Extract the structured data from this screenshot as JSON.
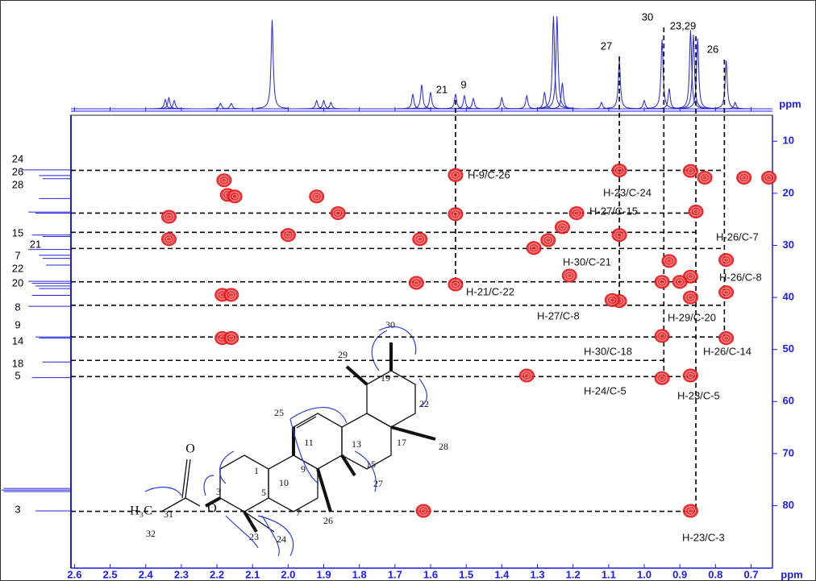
{
  "chart_data": {
    "type": "hmbc",
    "x_label": "ppm",
    "y_label": "ppm",
    "xlim": [
      2.61,
      0.64
    ],
    "ylim": [
      5,
      92
    ],
    "xticks": [
      2.6,
      2.5,
      2.4,
      2.3,
      2.2,
      2.1,
      {
        "value": 2,
        "label": "2.0"
      },
      1.9,
      1.8,
      1.7,
      1.6,
      1.5,
      1.4,
      1.3,
      1.2,
      1.1,
      {
        "value": 1,
        "label": "1.0"
      },
      0.9,
      0.8,
      0.7
    ],
    "yticks": [
      10,
      20,
      30,
      40,
      50,
      60,
      70,
      80
    ],
    "axis_color": "#1a1aff",
    "peak_color": "#e8191c",
    "proton_spectrum": {
      "x": [
        2.345,
        2.335,
        2.32,
        2.19,
        2.16,
        2.045,
        1.92,
        1.9,
        1.88,
        1.65,
        1.625,
        1.6,
        1.53,
        1.505,
        1.48,
        1.4,
        1.33,
        1.28,
        1.255,
        1.245,
        1.23,
        1.12,
        1.07,
        1.0,
        0.95,
        0.93,
        0.87,
        0.862,
        0.85,
        0.77,
        0.745
      ],
      "values": [
        10,
        12,
        9,
        6,
        6,
        96,
        9,
        9,
        7,
        16,
        26,
        18,
        16,
        14,
        11,
        12,
        14,
        18,
        100,
        100,
        28,
        7,
        52,
        9,
        75,
        22,
        85,
        80,
        76,
        52,
        7
      ]
    },
    "carbon_spectrum": {
      "values": [
        15.5,
        16.6,
        17.2,
        21.0,
        23.6,
        23.8,
        28.0,
        28.3,
        30.8,
        31.9,
        32.5,
        33.8,
        36.9,
        37.3,
        37.8,
        38.3,
        39.6,
        41.7,
        47.6,
        47.8,
        52.4,
        55.4,
        76.7,
        77.0,
        77.3,
        81.0
      ],
      "intensities": [
        70,
        45,
        40,
        45,
        60,
        50,
        55,
        40,
        60,
        45,
        40,
        35,
        60,
        55,
        50,
        45,
        55,
        60,
        50,
        45,
        40,
        55,
        95,
        98,
        95,
        50
      ]
    },
    "proton_labels": [
      "21",
      "9",
      "27",
      "30",
      "23,29",
      "26"
    ],
    "carbon_labels": [
      "24",
      "26",
      "28",
      "15",
      "21",
      "7",
      "22",
      "20",
      "8",
      "9",
      "14",
      "18",
      "5",
      "3"
    ],
    "vertical_lines": {
      "x": [
        1.53,
        1.07,
        0.945,
        0.855,
        0.775
      ],
      "ends": [
        37.5,
        41.5,
        55.2,
        81.1,
        47.6
      ]
    },
    "horizontal_lines": {
      "y": [
        15.6,
        23.8,
        27.5,
        30.6,
        37.0,
        41.5,
        47.6,
        52.1,
        55.2,
        81.1
      ],
      "ends": [
        0.775,
        0.855,
        0.855,
        0.775,
        0.855,
        0.775,
        0.775,
        0.945,
        0.855,
        0.855
      ]
    },
    "cross_peaks": {
      "x": [
        1.53,
        1.53,
        1.53,
        2.335,
        2.335,
        2.18,
        2.17,
        2.15,
        2.185,
        2.16,
        2.185,
        2.16,
        1.92,
        1.86,
        2.0,
        1.63,
        1.64,
        1.19,
        1.23,
        1.31,
        1.27,
        1.21,
        1.07,
        1.07,
        1.07,
        0.95,
        0.95,
        0.95,
        0.93,
        0.87,
        0.87,
        0.87,
        0.87,
        0.87,
        0.855,
        0.83,
        0.77,
        0.77,
        0.77,
        0.72,
        0.65,
        1.33,
        1.62,
        1.09,
        0.9
      ],
      "y": [
        16.5,
        24,
        37.5,
        24.5,
        28.8,
        17.5,
        20.3,
        20.6,
        39.5,
        39.5,
        47.8,
        47.8,
        20.6,
        23.8,
        28,
        28.8,
        37.2,
        23.8,
        26.5,
        30.5,
        29,
        35.8,
        15.6,
        28,
        40.7,
        37,
        47.4,
        55.5,
        33,
        15.7,
        36,
        40,
        55,
        81,
        23.5,
        17,
        32.8,
        39,
        47.8,
        17,
        17,
        55,
        81,
        40.5,
        37
      ]
    },
    "annotations": [
      "H-9/C-26",
      "H-23/C-24",
      "H-27/C-15",
      "H-26/C-7",
      "H-30/C-21",
      "H-26/C-8",
      "H-21/C-22",
      "H-27/C-8",
      "H-29/C-20",
      "H-30/C-18",
      "H-26/C-14",
      "H-24/C-5",
      "H-23/C-5",
      "H-23/C-3"
    ],
    "structure_labels": [
      "30",
      "29",
      "19",
      "22",
      "25",
      "11",
      "13",
      "17",
      "28",
      "15",
      "1",
      "9",
      "10",
      "5",
      "27",
      "3",
      "7",
      "26",
      "31",
      "23",
      "24",
      "32",
      "O",
      "O",
      "H₃C"
    ]
  }
}
